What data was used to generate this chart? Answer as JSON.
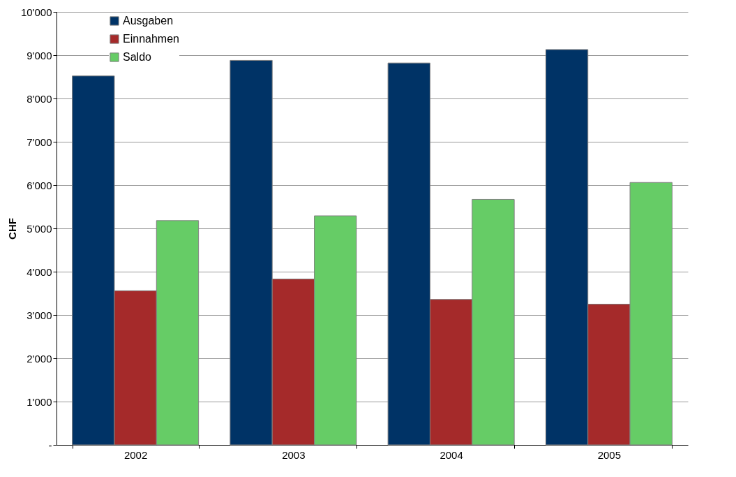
{
  "chart_data": {
    "type": "bar",
    "ylabel": "CHF",
    "categories": [
      "2002",
      "2003",
      "2004",
      "2005"
    ],
    "series": [
      {
        "name": "Ausgaben",
        "color": "#003366",
        "values": [
          8520,
          8880,
          8820,
          9130
        ]
      },
      {
        "name": "Einnahmen",
        "color": "#a52a2a",
        "values": [
          3560,
          3830,
          3360,
          3250
        ]
      },
      {
        "name": "Saldo",
        "color": "#66cc66",
        "values": [
          5180,
          5290,
          5670,
          6060
        ]
      }
    ],
    "ylim": [
      0,
      10000
    ],
    "yticks": [
      {
        "value": 0,
        "label": "-"
      },
      {
        "value": 1000,
        "label": "1'000"
      },
      {
        "value": 2000,
        "label": "2'000"
      },
      {
        "value": 3000,
        "label": "3'000"
      },
      {
        "value": 4000,
        "label": "4'000"
      },
      {
        "value": 5000,
        "label": "5'000"
      },
      {
        "value": 6000,
        "label": "6'000"
      },
      {
        "value": 7000,
        "label": "7'000"
      },
      {
        "value": 8000,
        "label": "8'000"
      },
      {
        "value": 9000,
        "label": "9'000"
      },
      {
        "value": 10000,
        "label": "10'000"
      }
    ],
    "grid": "y",
    "legend": "top left"
  }
}
